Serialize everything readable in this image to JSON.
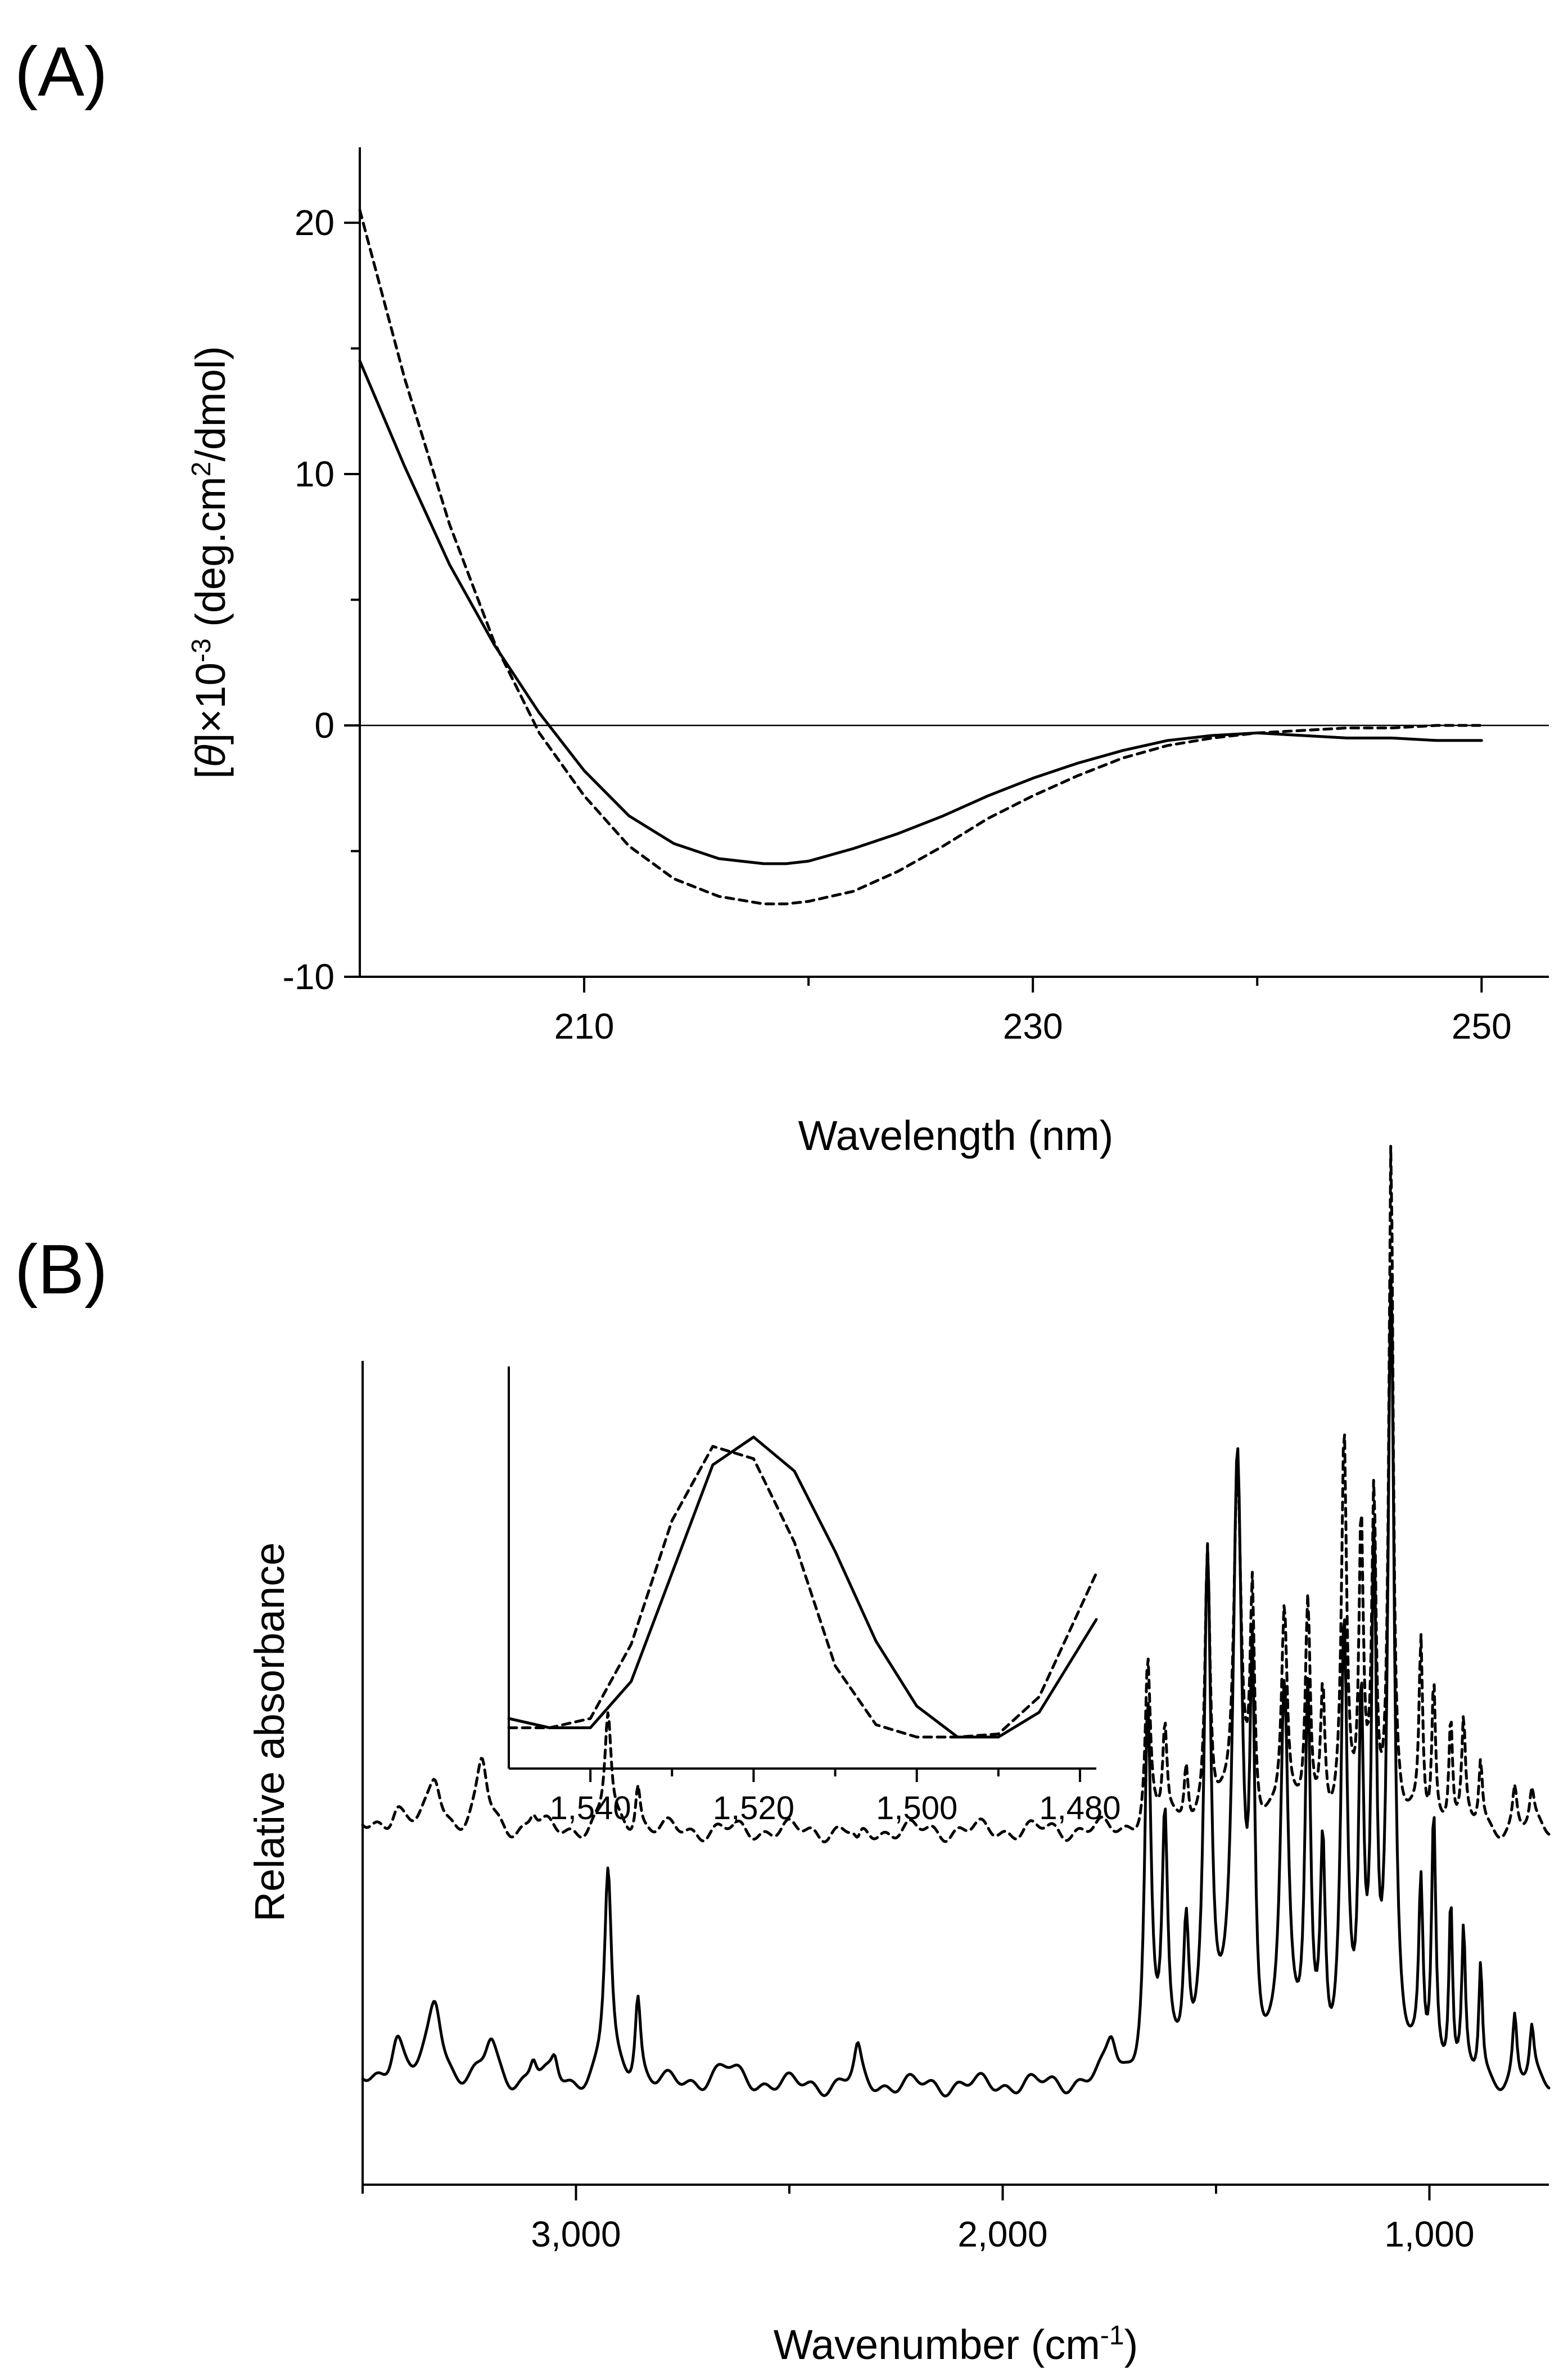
{
  "chart_data": [
    {
      "panel": "(A)",
      "type": "line",
      "xlabel": "Wavelength (nm)",
      "ylabel": {
        "pre": "[",
        "theta": "θ",
        "mid": "]×10",
        "exp": "-3",
        "post": " (deg.cm",
        "exp2": "2",
        "end": "/dmol)"
      },
      "xlim": [
        200,
        253
      ],
      "ylim": [
        -10,
        23
      ],
      "xticks": [
        210,
        230,
        250
      ],
      "xminor": [
        220,
        240
      ],
      "yticks": [
        -10,
        0,
        10,
        20
      ],
      "ytick_labels": [
        "-10",
        "0",
        "10",
        "20"
      ],
      "yminor": [
        -5,
        5,
        15
      ],
      "zero_line": true,
      "series": [
        {
          "name": "solid",
          "style": "solid",
          "x": [
            200,
            202,
            204,
            206,
            208,
            210,
            212,
            214,
            216,
            218,
            219,
            220,
            222,
            224,
            226,
            228,
            230,
            232,
            234,
            236,
            238,
            240,
            242,
            244,
            246,
            248,
            250
          ],
          "y": [
            14.5,
            10.3,
            6.4,
            3.2,
            0.5,
            -1.8,
            -3.6,
            -4.7,
            -5.3,
            -5.5,
            -5.5,
            -5.4,
            -4.9,
            -4.3,
            -3.6,
            -2.8,
            -2.1,
            -1.5,
            -1.0,
            -0.6,
            -0.4,
            -0.3,
            -0.4,
            -0.5,
            -0.5,
            -0.6,
            -0.6
          ]
        },
        {
          "name": "dashed",
          "style": "dashed",
          "x": [
            200,
            202,
            204,
            206,
            208,
            210,
            212,
            214,
            216,
            218,
            219,
            220,
            222,
            224,
            226,
            228,
            230,
            232,
            234,
            236,
            238,
            240,
            242,
            244,
            246,
            248,
            250
          ],
          "y": [
            20.5,
            13.8,
            8.0,
            3.3,
            -0.3,
            -2.8,
            -4.8,
            -6.1,
            -6.8,
            -7.1,
            -7.1,
            -7.0,
            -6.6,
            -5.8,
            -4.8,
            -3.7,
            -2.8,
            -2.0,
            -1.3,
            -0.8,
            -0.5,
            -0.3,
            -0.2,
            -0.1,
            -0.1,
            0.0,
            0.0
          ]
        }
      ]
    },
    {
      "panel": "(B)",
      "type": "line",
      "xlabel": {
        "pre": "Wavenumber (cm",
        "exp": "-1",
        "post": ")"
      },
      "ylabel": "Relative absorbance",
      "xlim": [
        3500,
        720
      ],
      "ylim": [
        0,
        1
      ],
      "xticks": [
        3000,
        2000,
        1000
      ],
      "xtick_labels": [
        "3,000",
        "2,000",
        "1,000"
      ],
      "xminor": [
        3500,
        2500,
        1500
      ],
      "series": [
        {
          "name": "solid",
          "style": "solid",
          "baseline": 0.12,
          "drift": 0.0,
          "peaks": [
            [
              3420,
              0.06,
              18
            ],
            [
              3330,
              0.1,
              20
            ],
            [
              3200,
              0.05,
              18
            ],
            [
              3100,
              0.03,
              10
            ],
            [
              3050,
              0.03,
              10
            ],
            [
              2925,
              0.26,
              10
            ],
            [
              2855,
              0.11,
              8
            ],
            [
              2650,
              0.02,
              40
            ],
            [
              2340,
              0.04,
              10
            ],
            [
              1745,
              0.05,
              15
            ],
            [
              1660,
              0.44,
              9
            ],
            [
              1620,
              0.3,
              8
            ],
            [
              1570,
              0.18,
              8
            ],
            [
              1520,
              0.62,
              10
            ],
            [
              1450,
              0.74,
              13
            ],
            [
              1415,
              0.45,
              7
            ],
            [
              1340,
              0.46,
              11
            ],
            [
              1285,
              0.46,
              8
            ],
            [
              1250,
              0.26,
              7
            ],
            [
              1200,
              0.52,
              9
            ],
            [
              1160,
              0.42,
              7
            ],
            [
              1130,
              0.62,
              7
            ],
            [
              1090,
              0.95,
              9
            ],
            [
              1020,
              0.22,
              6
            ],
            [
              990,
              0.32,
              6
            ],
            [
              950,
              0.22,
              5
            ],
            [
              920,
              0.17,
              5
            ],
            [
              880,
              0.14,
              5
            ],
            [
              800,
              0.08,
              6
            ],
            [
              760,
              0.06,
              6
            ]
          ]
        },
        {
          "name": "dashed",
          "style": "dashed",
          "baseline": 0.43,
          "drift": 0.0,
          "peaks": [
            [
              3420,
              0.03,
              18
            ],
            [
              3330,
              0.06,
              18
            ],
            [
              3220,
              0.08,
              15
            ],
            [
              3100,
              0.02,
              10
            ],
            [
              2925,
              0.14,
              9
            ],
            [
              2855,
              0.06,
              7
            ],
            [
              2340,
              -0.02,
              10
            ],
            [
              1660,
              0.2,
              7
            ],
            [
              1620,
              0.12,
              6
            ],
            [
              1570,
              0.08,
              6
            ],
            [
              1520,
              0.34,
              7
            ],
            [
              1450,
              0.44,
              10
            ],
            [
              1415,
              0.28,
              6
            ],
            [
              1340,
              0.26,
              8
            ],
            [
              1285,
              0.28,
              7
            ],
            [
              1250,
              0.16,
              6
            ],
            [
              1200,
              0.46,
              7
            ],
            [
              1160,
              0.36,
              6
            ],
            [
              1130,
              0.4,
              6
            ],
            [
              1090,
              0.82,
              6
            ],
            [
              1020,
              0.22,
              5
            ],
            [
              990,
              0.18,
              5
            ],
            [
              950,
              0.14,
              5
            ],
            [
              920,
              0.12,
              5
            ],
            [
              880,
              0.08,
              5
            ],
            [
              800,
              0.05,
              6
            ],
            [
              760,
              0.04,
              6
            ]
          ]
        }
      ],
      "inset": {
        "xlim": [
          1550,
          1478
        ],
        "xticks": [
          1540,
          1520,
          1500,
          1480
        ],
        "xtick_labels": [
          "1,540",
          "1,520",
          "1,500",
          "1,480"
        ],
        "xminor": [
          1530,
          1510,
          1490
        ],
        "series": [
          {
            "name": "solid",
            "style": "solid",
            "x": [
              1550,
              1545,
              1540,
              1535,
              1530,
              1525,
              1520,
              1515,
              1510,
              1505,
              1500,
              1495,
              1490,
              1485,
              1478
            ],
            "y": [
              0.08,
              0.05,
              0.05,
              0.2,
              0.55,
              0.9,
              0.99,
              0.88,
              0.62,
              0.33,
              0.12,
              0.02,
              0.02,
              0.1,
              0.4
            ]
          },
          {
            "name": "dashed",
            "style": "dashed",
            "x": [
              1550,
              1545,
              1540,
              1535,
              1530,
              1525,
              1520,
              1515,
              1510,
              1505,
              1500,
              1495,
              1490,
              1485,
              1478
            ],
            "y": [
              0.05,
              0.05,
              0.08,
              0.32,
              0.72,
              0.96,
              0.92,
              0.65,
              0.25,
              0.06,
              0.02,
              0.02,
              0.03,
              0.15,
              0.55
            ]
          }
        ]
      }
    }
  ]
}
